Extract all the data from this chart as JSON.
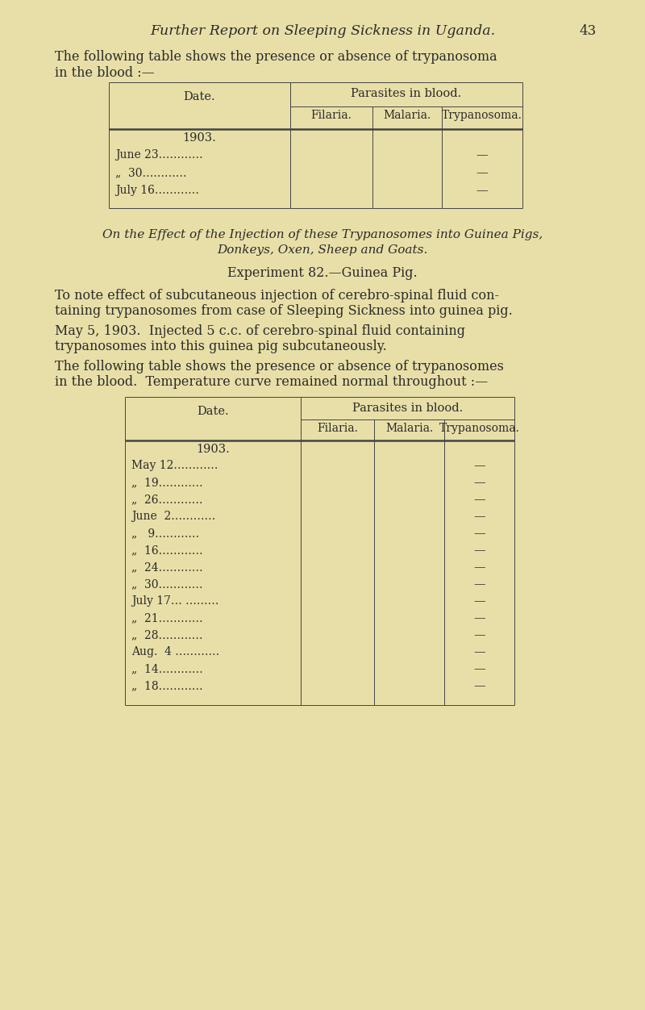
{
  "bg_color": "#e8dfa8",
  "text_color": "#2a2a2a",
  "page_title": "Further Report on Sleeping Sickness in Uganda.",
  "page_number": "43",
  "intro_text1": "The following table shows the presence or absence of trypanosoma",
  "intro_text2": "in the blood :—",
  "table1": {
    "header_span": "Parasites in blood.",
    "col_date": "Date.",
    "col1": "Filaria.",
    "col2": "Malaria.",
    "col3": "Trypanosoma.",
    "year": "1903.",
    "rows": [
      [
        "June 23…………",
        "",
        "",
        "—"
      ],
      [
        "„  30…………",
        "",
        "",
        "—"
      ],
      [
        "July 16…………",
        "",
        "",
        "—"
      ]
    ]
  },
  "section_title1": "On the Effect of the Injection of these Trypanosomes into Guinea Pigs,",
  "section_title2": "Donkeys, Oxen, Sheep and Goats.",
  "exp_title": "Experiment 82.—Guinea Pig.",
  "para1a": "To note effect of subcutaneous injection of cerebro-spinal fluid con-",
  "para1b": "taining trypanosomes from case of Sleeping Sickness into guinea pig.",
  "para2a": "May 5, 1903.  Injected 5 c.c. of cerebro-spinal fluid containing",
  "para2b": "trypanosomes into this guinea pig subcutaneously.",
  "para3a": "The following table shows the presence or absence of trypanosomes",
  "para3b": "in the blood.  Temperature curve remained normal throughout :—",
  "table2": {
    "header_span": "Parasites in blood.",
    "col_date": "Date.",
    "col1": "Filaria.",
    "col2": "Malaria.",
    "col3": "Trypanosoma.",
    "year": "1903.",
    "rows": [
      [
        "May 12…………",
        "",
        "",
        "—"
      ],
      [
        "„  19…………",
        "",
        "",
        "—"
      ],
      [
        "„  26…………",
        "",
        "",
        "—"
      ],
      [
        "June  2…………",
        "",
        "",
        "—"
      ],
      [
        "„   9…………",
        "",
        "",
        "—"
      ],
      [
        "„  16…………",
        "",
        "",
        "—"
      ],
      [
        "„  24…………",
        "",
        "",
        "—"
      ],
      [
        "„  30…………",
        "",
        "",
        "—"
      ],
      [
        "July 17… ………",
        "",
        "",
        "—"
      ],
      [
        "„  21…………",
        "",
        "",
        "—"
      ],
      [
        "„  28…………",
        "",
        "",
        "—"
      ],
      [
        "Aug.  4 …………",
        "",
        "",
        "—"
      ],
      [
        "„  14…………",
        "",
        "",
        "—"
      ],
      [
        "„  18…………",
        "",
        "",
        "—"
      ]
    ]
  }
}
